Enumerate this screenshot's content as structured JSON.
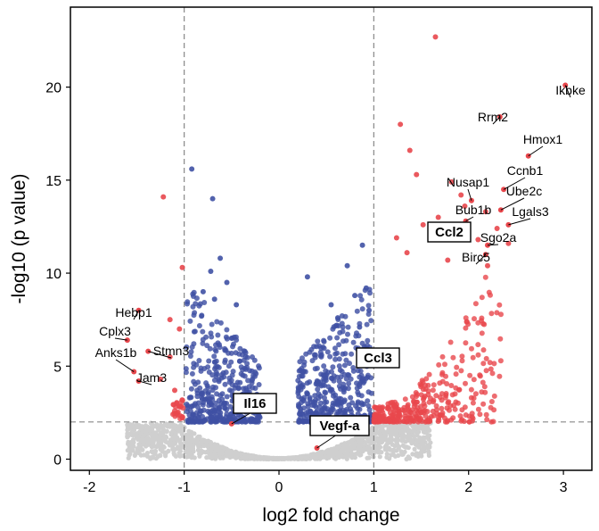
{
  "chart_data": {
    "type": "scatter",
    "title": "",
    "xlabel": "log2 fold change",
    "ylabel": "-log10 (p value)",
    "xlim": [
      -2.2,
      3.3
    ],
    "ylim": [
      -0.6,
      24.3
    ],
    "x_ticks": [
      -2,
      -1,
      0,
      1,
      2,
      3
    ],
    "y_ticks": [
      0,
      5,
      10,
      15,
      20
    ],
    "thresholds": {
      "x": [
        -1,
        1
      ],
      "y": 2
    },
    "colors": {
      "grey": "#cfcfcf",
      "blue": "#3f51a4",
      "red": "#e8474c",
      "guide": "#888888"
    },
    "highlight_points": [
      {
        "x": 1.65,
        "y": 22.7,
        "group": "red"
      },
      {
        "x": 1.28,
        "y": 18.0,
        "group": "red"
      },
      {
        "x": 1.38,
        "y": 16.6,
        "group": "red"
      },
      {
        "x": 1.45,
        "y": 15.3,
        "group": "red"
      },
      {
        "x": 1.82,
        "y": 14.9,
        "group": "red"
      },
      {
        "x": 1.92,
        "y": 14.2,
        "group": "red"
      },
      {
        "x": 1.96,
        "y": 13.6,
        "group": "red"
      },
      {
        "x": 2.18,
        "y": 13.3,
        "group": "red"
      },
      {
        "x": 1.68,
        "y": 13.0,
        "group": "red"
      },
      {
        "x": 1.52,
        "y": 12.6,
        "group": "red"
      },
      {
        "x": 2.3,
        "y": 12.4,
        "group": "red"
      },
      {
        "x": 1.24,
        "y": 11.9,
        "group": "red"
      },
      {
        "x": 2.1,
        "y": 11.8,
        "group": "red"
      },
      {
        "x": 2.42,
        "y": 11.6,
        "group": "red"
      },
      {
        "x": 1.35,
        "y": 11.1,
        "group": "red"
      },
      {
        "x": 2.2,
        "y": 10.4,
        "group": "red"
      },
      {
        "x": 1.78,
        "y": 10.7,
        "group": "red"
      },
      {
        "x": -1.22,
        "y": 14.1,
        "group": "red"
      },
      {
        "x": -1.02,
        "y": 10.3,
        "group": "red"
      },
      {
        "x": -1.15,
        "y": 7.5,
        "group": "red"
      },
      {
        "x": -1.05,
        "y": 7.0,
        "group": "red"
      },
      {
        "x": -1.15,
        "y": 5.5,
        "group": "red"
      },
      {
        "x": -1.25,
        "y": 4.3,
        "group": "red"
      },
      {
        "x": -1.1,
        "y": 3.7,
        "group": "red"
      },
      {
        "x": -1.08,
        "y": 3.0,
        "group": "red"
      },
      {
        "x": -0.92,
        "y": 15.6,
        "group": "blue"
      },
      {
        "x": -0.7,
        "y": 14.0,
        "group": "blue"
      },
      {
        "x": -0.62,
        "y": 10.8,
        "group": "blue"
      },
      {
        "x": -0.72,
        "y": 10.1,
        "group": "blue"
      },
      {
        "x": -0.55,
        "y": 9.5,
        "group": "blue"
      },
      {
        "x": -0.8,
        "y": 9.0,
        "group": "blue"
      },
      {
        "x": -0.68,
        "y": 8.6,
        "group": "blue"
      },
      {
        "x": -0.45,
        "y": 8.3,
        "group": "blue"
      },
      {
        "x": 0.88,
        "y": 11.5,
        "group": "blue"
      },
      {
        "x": 0.72,
        "y": 10.4,
        "group": "blue"
      },
      {
        "x": 0.3,
        "y": 9.8,
        "group": "blue"
      },
      {
        "x": 0.92,
        "y": 9.2,
        "group": "blue"
      },
      {
        "x": 0.8,
        "y": 8.8,
        "group": "blue"
      },
      {
        "x": 0.55,
        "y": 8.3,
        "group": "blue"
      },
      {
        "x": 0.95,
        "y": 8.0,
        "group": "blue"
      },
      {
        "x": 0.62,
        "y": 7.6,
        "group": "blue"
      },
      {
        "x": 0.85,
        "y": 7.1,
        "group": "blue"
      }
    ],
    "labeled_genes": [
      {
        "name": "Ikbke",
        "x": 3.02,
        "y": 20.1,
        "boxed": false
      },
      {
        "name": "Rrm2",
        "x": 2.33,
        "y": 18.4,
        "boxed": false
      },
      {
        "name": "Hmox1",
        "x": 2.63,
        "y": 16.3,
        "boxed": false
      },
      {
        "name": "Ccnb1",
        "x": 2.37,
        "y": 14.5,
        "boxed": false
      },
      {
        "name": "Nusap1",
        "x": 2.03,
        "y": 13.9,
        "boxed": false
      },
      {
        "name": "Ube2c",
        "x": 2.34,
        "y": 13.4,
        "boxed": false
      },
      {
        "name": "Bub1b",
        "x": 1.97,
        "y": 12.8,
        "boxed": false
      },
      {
        "name": "Lgals3",
        "x": 2.42,
        "y": 12.6,
        "boxed": false
      },
      {
        "name": "Ccl2",
        "x": 1.94,
        "y": 11.9,
        "boxed": true
      },
      {
        "name": "Sgo2a",
        "x": 2.2,
        "y": 11.5,
        "boxed": false
      },
      {
        "name": "Birc5",
        "x": 2.18,
        "y": 11.0,
        "boxed": false
      },
      {
        "name": "Hebp1",
        "x": -1.48,
        "y": 8.0,
        "boxed": false
      },
      {
        "name": "Cplx3",
        "x": -1.6,
        "y": 6.4,
        "boxed": false
      },
      {
        "name": "Stmn3",
        "x": -1.38,
        "y": 5.8,
        "boxed": false
      },
      {
        "name": "Anks1b",
        "x": -1.53,
        "y": 4.7,
        "boxed": false
      },
      {
        "name": "Jam3",
        "x": -1.48,
        "y": 4.2,
        "boxed": false
      },
      {
        "name": "Ccl3",
        "x": 1.0,
        "y": 5.2,
        "boxed": true
      },
      {
        "name": "Il16",
        "x": -0.5,
        "y": 1.9,
        "boxed": true
      },
      {
        "name": "Vegf-a",
        "x": 0.4,
        "y": 0.6,
        "boxed": true
      }
    ]
  }
}
